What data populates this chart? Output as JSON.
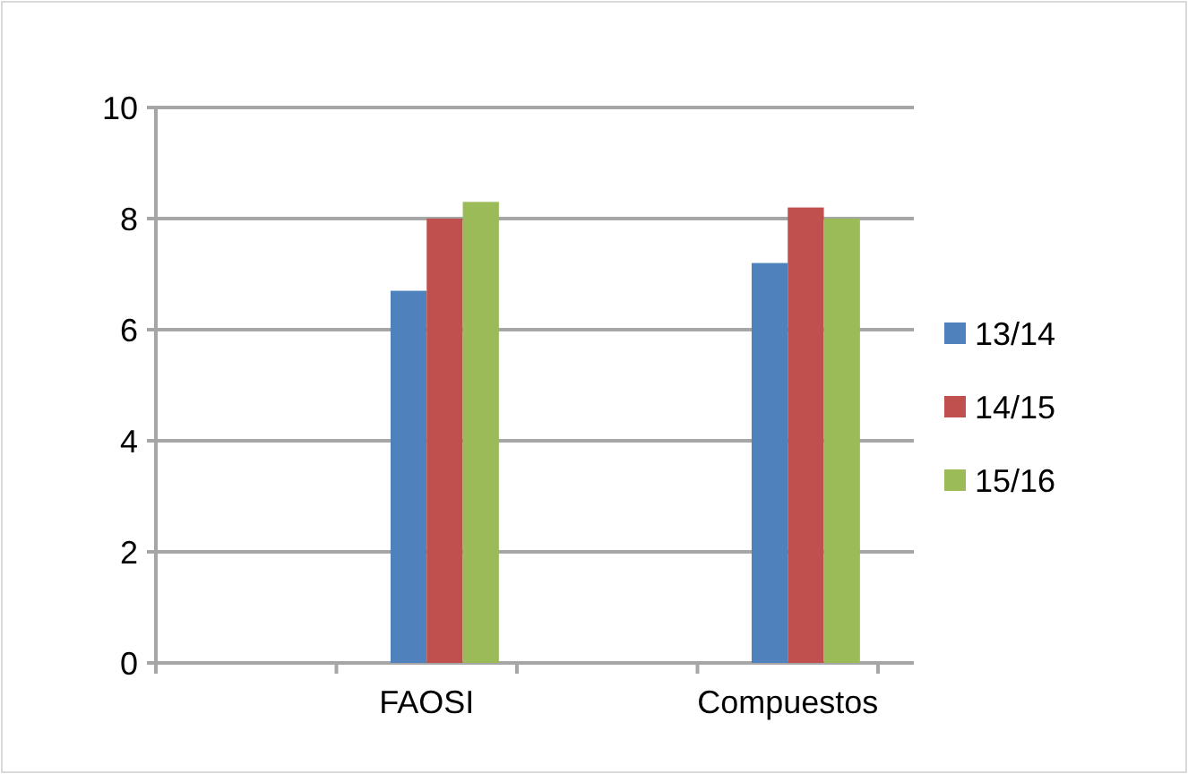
{
  "chart_data": {
    "type": "bar",
    "categories": [
      null,
      "FAOSI",
      null,
      "Compuestos"
    ],
    "series": [
      {
        "name": "13/14",
        "color": "#4f81bd",
        "values": [
          null,
          6.7,
          null,
          7.2
        ]
      },
      {
        "name": "14/15",
        "color": "#c0504d",
        "values": [
          null,
          8.0,
          null,
          8.2
        ]
      },
      {
        "name": "15/16",
        "color": "#9bbb59",
        "values": [
          null,
          8.3,
          null,
          8.0
        ]
      }
    ],
    "ylim": [
      0,
      10
    ],
    "yticks": [
      0,
      2,
      4,
      6,
      8,
      10
    ],
    "grid": "y",
    "legend": "right"
  }
}
